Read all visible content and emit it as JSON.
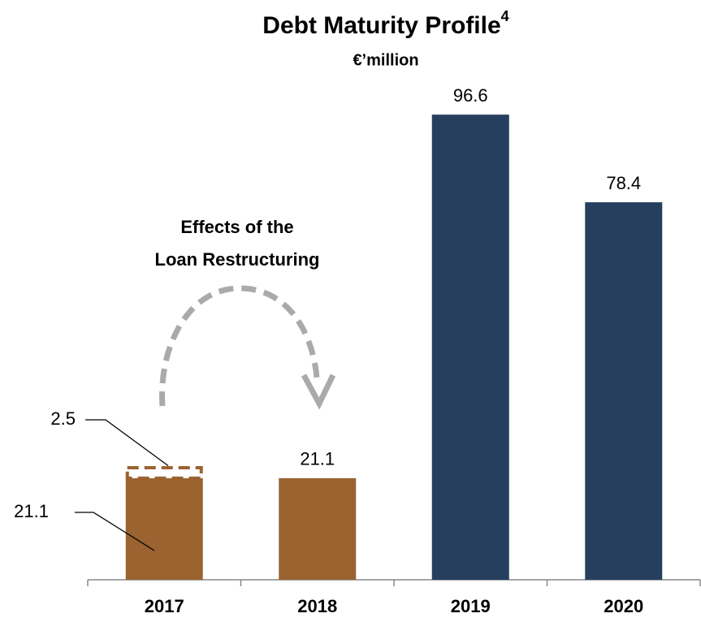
{
  "chart_data": {
    "type": "bar",
    "title": "Debt Maturity Profile",
    "title_superscript": "4",
    "subtitle": "€’million",
    "annotation": [
      "Effects of the",
      "Loan Restructuring"
    ],
    "categories": [
      "2017",
      "2018",
      "2019",
      "2020"
    ],
    "series": [
      {
        "colors": [
          "#9a6330",
          "#9a6330",
          "#263f5e",
          "#263f5e"
        ],
        "values": [
          21.1,
          21.1,
          96.6,
          78.4
        ]
      },
      {
        "color": "#9a6330",
        "style": "dashed",
        "values": [
          2.5,
          null,
          null,
          null
        ]
      }
    ],
    "ylim": [
      0,
      100
    ]
  }
}
